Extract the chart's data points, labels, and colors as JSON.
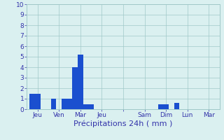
{
  "bars": [
    {
      "x": 1,
      "height": 1.5
    },
    {
      "x": 2,
      "height": 1.5
    },
    {
      "x": 5,
      "height": 1.0
    },
    {
      "x": 7,
      "height": 1.0
    },
    {
      "x": 8,
      "height": 1.0
    },
    {
      "x": 9,
      "height": 4.0
    },
    {
      "x": 10,
      "height": 5.2
    },
    {
      "x": 11,
      "height": 0.5
    },
    {
      "x": 12,
      "height": 0.5
    },
    {
      "x": 25,
      "height": 0.5
    },
    {
      "x": 26,
      "height": 0.5
    },
    {
      "x": 28,
      "height": 0.6
    }
  ],
  "xtick_positions": [
    2,
    6,
    10,
    14,
    18,
    22,
    26,
    30,
    34
  ],
  "xtick_labels": [
    "Jeu",
    "Ven",
    "Mar",
    "Jeu",
    "",
    "Sam",
    "Dim",
    "Lun",
    "Mar"
  ],
  "ytick_positions": [
    0,
    1,
    2,
    3,
    4,
    5,
    6,
    7,
    8,
    9,
    10
  ],
  "ytick_labels": [
    "0",
    "1",
    "2",
    "3",
    "4",
    "5",
    "6",
    "7",
    "8",
    "9",
    "10"
  ],
  "xlabel": "Précipitations 24h ( mm )",
  "ylim": [
    0,
    10
  ],
  "xlim": [
    0,
    36
  ],
  "bar_width": 1.0,
  "bg_color": "#daf0f0",
  "bar_color": "#1a4fcf",
  "grid_color": "#a0c8c8",
  "text_color": "#3333aa",
  "xlabel_fontsize": 8,
  "tick_fontsize": 6.5
}
